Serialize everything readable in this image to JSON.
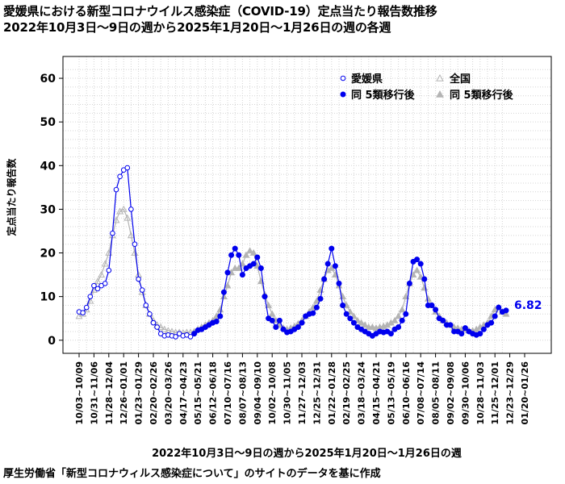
{
  "title_line1": "愛媛県における新型コロナウイルス感染症（COVID-19）定点当たり報告数推移",
  "title_line2": "2022年10月3日〜9日の週から2025年1月20日〜1月26日の週の各週",
  "source_note": "厚生労働省「新型コロナウィルス感染症について」のサイトのデータを基に作成",
  "chart_data": {
    "type": "line",
    "xlabel": "2022年10月3日〜9日の週から2025年1月20日〜1月26日の週",
    "ylabel": "定点当たり報告数",
    "ylim": [
      -3,
      65
    ],
    "yticks": [
      0,
      10,
      20,
      30,
      40,
      50,
      60
    ],
    "grid": true,
    "legend_position": "top-right",
    "legend": {
      "ehime": "愛媛県",
      "national": "全国",
      "ehime_post": "同 5類移行後",
      "national_post": "同 5類移行後"
    },
    "x_tick_labels": [
      "10/03~10/09",
      "10/31~11/06",
      "11/28~12/04",
      "12/26~01/01",
      "01/23~01/29",
      "02/20~02/26",
      "03/20~03/26",
      "04/17~04/23",
      "05/15~05/21",
      "06/12~06/18",
      "07/10~07/16",
      "08/07~08/13",
      "09/04~09/10",
      "10/02~10/08",
      "10/30~11/05",
      "11/27~12/03",
      "12/25~12/31",
      "01/22~01/28",
      "02/19~02/25",
      "03/18~03/24",
      "04/15~04/21",
      "05/13~05/19",
      "06/10~06/16",
      "07/08~07/14",
      "08/05~08/11",
      "09/02~09/08",
      "09/30~10/06",
      "10/28~11/03",
      "11/25~12/01",
      "12/23~12/29",
      "01/20~01/26"
    ],
    "x_tick_every": 4,
    "transition_index": 31,
    "last_label": "6.82",
    "colors": {
      "ehime": "#0000ee",
      "national": "#b4b4b4"
    },
    "series": [
      {
        "name": "愛媛県",
        "values": [
          6.5,
          6.3,
          7.5,
          10.0,
          12.5,
          11.8,
          12.5,
          13.0,
          16.0,
          24.5,
          34.5,
          37.5,
          39.0,
          39.5,
          30.0,
          22.0,
          14.0,
          11.5,
          8.0,
          6.0,
          4.0,
          3.0,
          1.5,
          1.0,
          1.2,
          1.0,
          0.8,
          1.5,
          1.0,
          1.2,
          0.8,
          1.5,
          2.3,
          2.5,
          3.0,
          3.5,
          4.0,
          4.3,
          5.5,
          11.0,
          15.5,
          19.5,
          21.0,
          19.5,
          15.0,
          16.5,
          17.0,
          17.5,
          19.0,
          16.5,
          10.0,
          5.0,
          4.5,
          3.0,
          4.5,
          2.5,
          1.8,
          2.0,
          2.5,
          3.0,
          4.0,
          5.5,
          6.0,
          6.2,
          7.5,
          9.5,
          14.0,
          17.5,
          21.0,
          17.0,
          13.0,
          8.0,
          6.0,
          5.0,
          4.0,
          3.0,
          2.5,
          2.0,
          1.5,
          1.0,
          1.5,
          2.0,
          1.8,
          2.0,
          1.5,
          2.5,
          3.0,
          4.5,
          6.0,
          13.0,
          18.0,
          18.5,
          17.5,
          14.0,
          8.0,
          8.0,
          7.0,
          5.0,
          4.5,
          3.5,
          3.5,
          2.0,
          2.0,
          1.5,
          2.8,
          2.0,
          1.5,
          1.2,
          1.5,
          2.5,
          3.5,
          4.0,
          5.5,
          7.5,
          6.5,
          6.82
        ]
      },
      {
        "name": "全国",
        "values": [
          5.5,
          6.0,
          7.0,
          9.0,
          11.5,
          13.5,
          15.0,
          17.5,
          20.0,
          24.0,
          27.5,
          29.5,
          30.0,
          28.0,
          24.0,
          20.0,
          15.0,
          11.0,
          8.0,
          6.0,
          4.5,
          3.5,
          3.0,
          2.5,
          2.2,
          2.0,
          1.8,
          1.8,
          1.7,
          1.8,
          1.8,
          2.0,
          2.5,
          3.0,
          3.5,
          4.0,
          4.5,
          5.5,
          7.0,
          10.0,
          12.5,
          15.5,
          16.5,
          16.5,
          17.5,
          19.5,
          20.5,
          20.0,
          17.0,
          13.5,
          10.5,
          8.0,
          6.0,
          4.5,
          3.5,
          2.8,
          2.5,
          2.8,
          3.2,
          3.8,
          4.5,
          5.5,
          6.5,
          7.5,
          9.0,
          11.5,
          14.0,
          16.0,
          16.5,
          15.0,
          12.5,
          10.0,
          8.0,
          6.5,
          5.5,
          4.5,
          4.0,
          3.5,
          3.0,
          3.0,
          2.8,
          3.0,
          3.2,
          3.5,
          4.0,
          4.5,
          5.5,
          7.0,
          10.0,
          13.0,
          15.0,
          16.0,
          14.5,
          12.0,
          9.5,
          8.0,
          6.5,
          5.5,
          4.5,
          4.0,
          3.5,
          3.0,
          2.8,
          2.5,
          2.5,
          2.2,
          2.2,
          2.5,
          3.0,
          3.5,
          4.0,
          5.5,
          7.0,
          7.5,
          6.5,
          6.0
        ]
      }
    ]
  }
}
